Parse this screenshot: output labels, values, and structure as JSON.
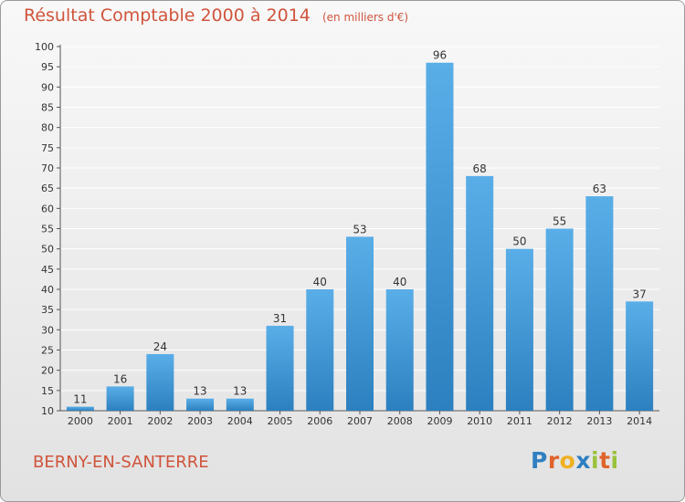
{
  "header": {
    "title": "Résultat Comptable 2000 à 2014",
    "unit": "(en milliers d'€)"
  },
  "footer": {
    "commune": "BERNY-EN-SANTERRE",
    "logo": "Proxiti",
    "logo_letters": [
      {
        "ch": "P",
        "color": "#2f7fc1"
      },
      {
        "ch": "r",
        "color": "#e0642c"
      },
      {
        "ch": "o",
        "color": "#f0b020"
      },
      {
        "ch": "x",
        "color": "#2f7fc1"
      },
      {
        "ch": "i",
        "color": "#9ac23c"
      },
      {
        "ch": "t",
        "color": "#e0642c"
      },
      {
        "ch": "i",
        "color": "#9ac23c"
      }
    ]
  },
  "colors": {
    "title": "#d0543c",
    "bar_top": "#5aaee8",
    "bar_bottom": "#2c80bf",
    "grid": "#ffffff",
    "text": "#333333"
  },
  "chart_data": {
    "type": "bar",
    "categories": [
      "2000",
      "2001",
      "2002",
      "2003",
      "2004",
      "2005",
      "2006",
      "2007",
      "2008",
      "2009",
      "2010",
      "2011",
      "2012",
      "2013",
      "2014"
    ],
    "values": [
      11,
      16,
      24,
      13,
      13,
      31,
      40,
      53,
      40,
      96,
      68,
      50,
      55,
      63,
      37
    ],
    "ylim": [
      10,
      100
    ],
    "yticks": [
      10,
      15,
      20,
      25,
      30,
      35,
      40,
      45,
      50,
      55,
      60,
      65,
      70,
      75,
      80,
      85,
      90,
      95,
      100
    ],
    "grid": true,
    "legend": "none"
  }
}
